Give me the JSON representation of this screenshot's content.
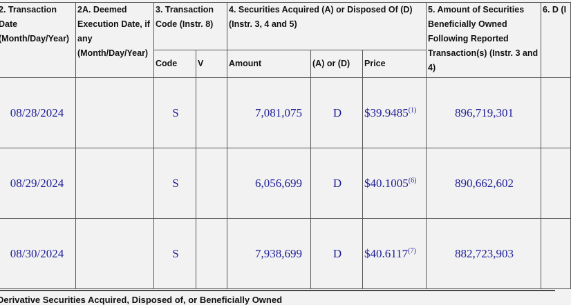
{
  "headers": {
    "col2": "2. Transaction Date (Month/Day/Year)",
    "col2a": "2A. Deemed Execution Date, if any (Month/Day/Year)",
    "col3": "3. Transaction Code (Instr. 8)",
    "col4": "4. Securities Acquired (A) or Disposed Of (D) (Instr. 3, 4 and 5)",
    "col5": "5. Amount of Securities Beneficially Owned Following Reported Transaction(s) (Instr. 3 and 4)",
    "col6": "6. D (I"
  },
  "subheaders": {
    "code": "Code",
    "v": "V",
    "amount": "Amount",
    "a_or_d": "(A) or (D)",
    "price": "Price"
  },
  "rows": [
    {
      "date": "08/28/2024",
      "deemed": "",
      "code": "S",
      "v": "",
      "amount": "7,081,075",
      "a_or_d": "D",
      "price": "$39.9485",
      "footnote": "(1)",
      "owned": "896,719,301"
    },
    {
      "date": "08/29/2024",
      "deemed": "",
      "code": "S",
      "v": "",
      "amount": "6,056,699",
      "a_or_d": "D",
      "price": "$40.1005",
      "footnote": "(6)",
      "owned": "890,662,602"
    },
    {
      "date": "08/30/2024",
      "deemed": "",
      "code": "S",
      "v": "",
      "amount": "7,938,699",
      "a_or_d": "D",
      "price": "$40.6117",
      "footnote": "(7)",
      "owned": "882,723,903"
    }
  ],
  "footer_text": "Derivative Securities Acquired, Disposed of, or Beneficially Owned"
}
